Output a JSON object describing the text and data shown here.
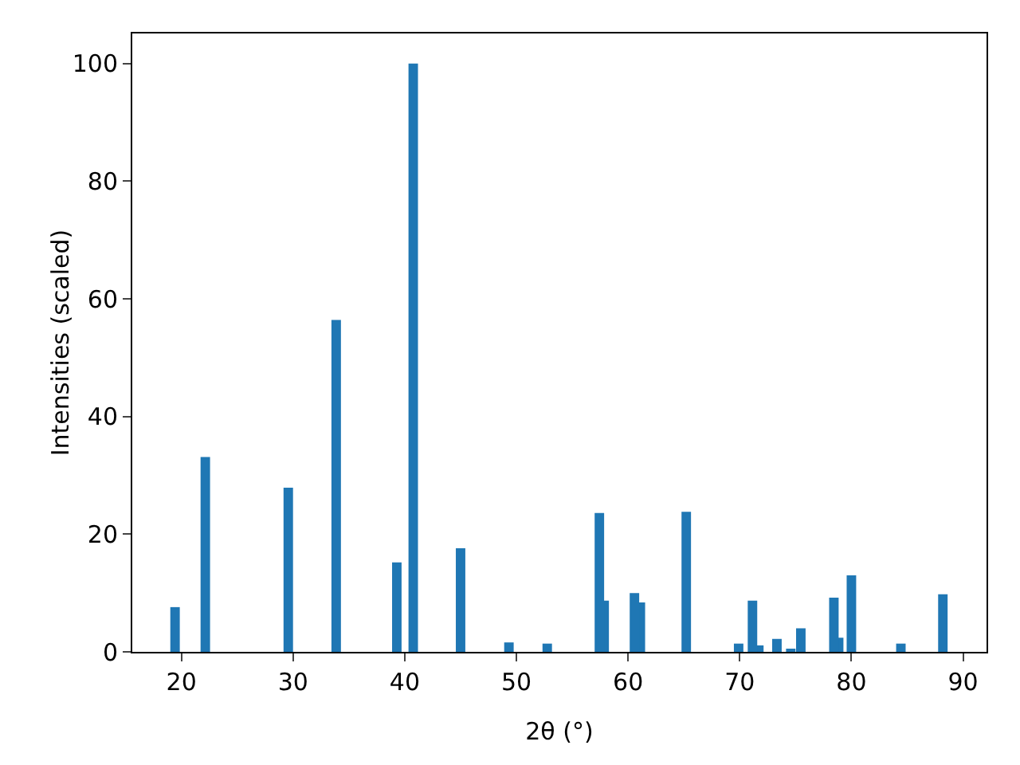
{
  "chart_data": {
    "type": "bar",
    "xlabel": "2θ (°)",
    "ylabel": "Intensities (scaled)",
    "color": "#1f77b4",
    "x": [
      19.43,
      22.14,
      29.57,
      33.86,
      39.29,
      40.76,
      45.0,
      49.33,
      52.76,
      57.43,
      57.86,
      60.57,
      61.1,
      65.21,
      69.9,
      71.14,
      71.71,
      73.33,
      74.57,
      75.47,
      78.43,
      78.86,
      80.0,
      84.43,
      88.19
    ],
    "values": [
      7.6,
      33.1,
      27.9,
      56.4,
      15.2,
      100,
      17.6,
      1.6,
      1.4,
      23.6,
      8.7,
      10.0,
      8.4,
      23.8,
      1.4,
      8.7,
      1.1,
      2.2,
      0.5,
      4.0,
      9.2,
      2.4,
      13.0,
      1.4,
      9.8
    ],
    "xlim": [
      15.6,
      92.1
    ],
    "xticks": [
      20,
      30,
      40,
      50,
      60,
      70,
      80,
      90
    ],
    "ylim": [
      0,
      105.1
    ],
    "yticks": [
      0,
      20,
      40,
      60,
      80,
      100
    ],
    "grid": false,
    "legend": false
  }
}
